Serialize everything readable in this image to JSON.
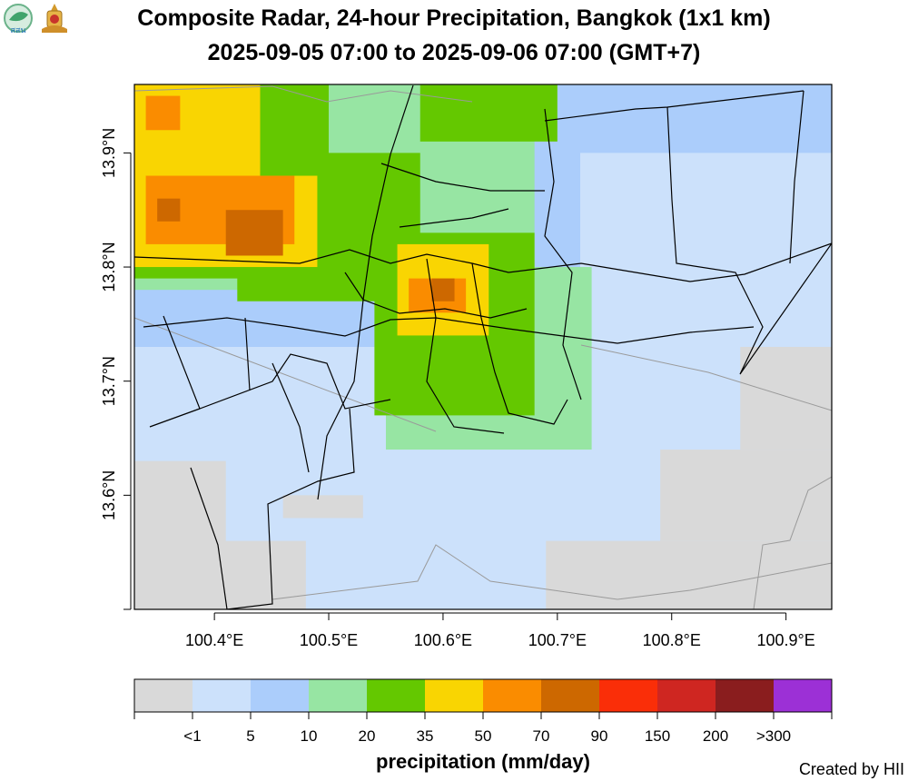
{
  "header": {
    "title_line1": "Composite Radar, 24-hour Precipitation, Bangkok (1x1 km)",
    "title_line2": "2025-09-05 07:00 to 2025-09-06 07:00 (GMT+7)",
    "logo_left_text": "สสน"
  },
  "credit": "Created by HII",
  "colorbar": {
    "title": "precipitation (mm/day)",
    "tick_labels": [
      "<1",
      "5",
      "10",
      "20",
      "35",
      "50",
      "70",
      "90",
      "150",
      "200",
      ">300"
    ],
    "colors": [
      "#d9d9d9",
      "#cce1fb",
      "#abcdfb",
      "#97e5a3",
      "#64c800",
      "#f9d502",
      "#fa8c00",
      "#cd6800",
      "#fa2e08",
      "#cf2621",
      "#8a1d1e",
      "#9c30d6"
    ]
  },
  "chart_data": {
    "type": "heatmap",
    "xlim": [
      100.33,
      100.94
    ],
    "ylim": [
      13.5,
      13.96
    ],
    "x_ticks": [
      100.4,
      100.5,
      100.6,
      100.7,
      100.8,
      100.9
    ],
    "x_tick_labels": [
      "100.4°E",
      "100.5°E",
      "100.6°E",
      "100.7°E",
      "100.8°E",
      "100.9°E"
    ],
    "y_ticks": [
      13.6,
      13.7,
      13.8,
      13.9
    ],
    "y_tick_labels": [
      "13.6°N",
      "13.7°N",
      "13.8°N",
      "13.9°N"
    ],
    "units": "mm/day",
    "zones": [
      {
        "category": 10,
        "lon": [
          100.33,
          100.94
        ],
        "lat": [
          13.5,
          13.96
        ]
      },
      {
        "category": 5,
        "lon": [
          100.33,
          100.94
        ],
        "lat": [
          13.5,
          13.73
        ]
      },
      {
        "category": 5,
        "lon": [
          100.72,
          100.94
        ],
        "lat": [
          13.73,
          13.9
        ]
      },
      {
        "category": 20,
        "lon": [
          100.33,
          100.68
        ],
        "lat": [
          13.78,
          13.96
        ]
      },
      {
        "category": 20,
        "lon": [
          100.55,
          100.73
        ],
        "lat": [
          13.64,
          13.8
        ]
      },
      {
        "category": 35,
        "lon": [
          100.33,
          100.5
        ],
        "lat": [
          13.79,
          13.96
        ]
      },
      {
        "category": 35,
        "lon": [
          100.42,
          100.58
        ],
        "lat": [
          13.77,
          13.9
        ]
      },
      {
        "category": 35,
        "lon": [
          100.58,
          100.7
        ],
        "lat": [
          13.91,
          13.96
        ]
      },
      {
        "category": 35,
        "lon": [
          100.54,
          100.68
        ],
        "lat": [
          13.67,
          13.83
        ]
      },
      {
        "category": 50,
        "lon": [
          100.33,
          100.44
        ],
        "lat": [
          13.81,
          13.96
        ]
      },
      {
        "category": 50,
        "lon": [
          100.33,
          100.49
        ],
        "lat": [
          13.8,
          13.88
        ]
      },
      {
        "category": 50,
        "lon": [
          100.56,
          100.64
        ],
        "lat": [
          13.74,
          13.82
        ]
      },
      {
        "category": 70,
        "lon": [
          100.34,
          100.47
        ],
        "lat": [
          13.82,
          13.88
        ]
      },
      {
        "category": 70,
        "lon": [
          100.34,
          100.37
        ],
        "lat": [
          13.92,
          13.95
        ]
      },
      {
        "category": 70,
        "lon": [
          100.57,
          100.62
        ],
        "lat": [
          13.76,
          13.79
        ]
      },
      {
        "category": 90,
        "lon": [
          100.41,
          100.46
        ],
        "lat": [
          13.81,
          13.85
        ]
      },
      {
        "category": 90,
        "lon": [
          100.35,
          100.37
        ],
        "lat": [
          13.84,
          13.86
        ]
      },
      {
        "category": 90,
        "lon": [
          100.59,
          100.61
        ],
        "lat": [
          13.77,
          13.79
        ]
      },
      {
        "category": 1,
        "lon": [
          100.33,
          100.41
        ],
        "lat": [
          13.5,
          13.63
        ]
      },
      {
        "category": 1,
        "lon": [
          100.33,
          100.48
        ],
        "lat": [
          13.5,
          13.56
        ]
      },
      {
        "category": 1,
        "lon": [
          100.46,
          100.53
        ],
        "lat": [
          13.58,
          13.6
        ]
      },
      {
        "category": 1,
        "lon": [
          100.69,
          100.94
        ],
        "lat": [
          13.5,
          13.56
        ]
      },
      {
        "category": 1,
        "lon": [
          100.79,
          100.94
        ],
        "lat": [
          13.56,
          13.64
        ]
      },
      {
        "category": 1,
        "lon": [
          100.86,
          100.94
        ],
        "lat": [
          13.64,
          13.73
        ]
      }
    ]
  }
}
